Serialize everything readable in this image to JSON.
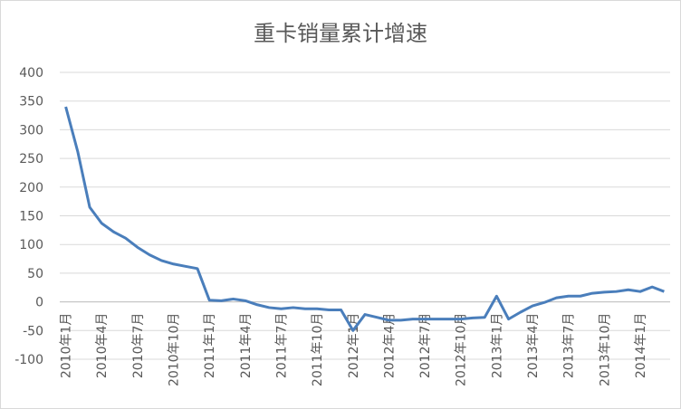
{
  "chart_data": {
    "type": "line",
    "title": "重卡销量累计增速",
    "categories": [
      "2010年1月",
      null,
      null,
      "2010年4月",
      null,
      null,
      "2010年7月",
      null,
      null,
      "2010年10月",
      null,
      null,
      "2011年1月",
      null,
      null,
      "2011年4月",
      null,
      null,
      "2011年7月",
      null,
      null,
      "2011年10月",
      null,
      null,
      "2012年1月",
      null,
      null,
      "2012年4月",
      null,
      null,
      "2012年7月",
      null,
      null,
      "2012年10月",
      null,
      null,
      "2013年1月",
      null,
      null,
      "2013年4月",
      null,
      null,
      "2013年7月",
      null,
      null,
      "2013年10月",
      null,
      null,
      "2014年1月",
      null,
      null
    ],
    "series": [
      {
        "color": "#4a7ebb",
        "values": [
          340,
          262,
          165,
          137,
          122,
          111,
          95,
          82,
          72,
          66,
          62,
          58,
          3,
          2,
          5,
          2,
          -5,
          -10,
          -12,
          -10,
          -12,
          -12,
          -14,
          -14,
          -50,
          -22,
          -27,
          -32,
          -32,
          -30,
          -30,
          -30,
          -30,
          -30,
          -28,
          -27,
          10,
          -30,
          -18,
          -7,
          -1,
          7,
          10,
          10,
          15,
          17,
          18,
          21,
          18,
          26,
          18
        ]
      }
    ],
    "ylim": [
      -100,
      400
    ],
    "yticks": [
      -100,
      -50,
      0,
      50,
      100,
      150,
      200,
      250,
      300,
      350,
      400
    ],
    "grid": true
  }
}
